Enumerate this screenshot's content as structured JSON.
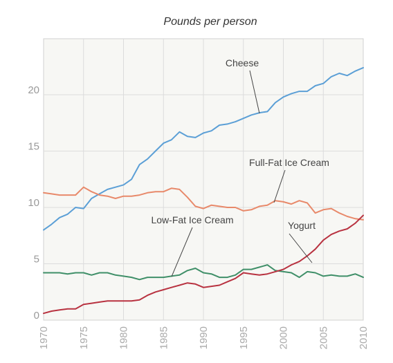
{
  "chart_data": {
    "type": "line",
    "title": "Pounds per person",
    "xlabel": "",
    "ylabel": "",
    "xlim": [
      1970,
      2010
    ],
    "ylim": [
      0,
      25
    ],
    "xticks": [
      "1970",
      "1975",
      "1980",
      "1985",
      "1990",
      "1995",
      "2000",
      "2005",
      "2010"
    ],
    "yticks": [
      "0",
      "5",
      "10",
      "15",
      "20"
    ],
    "grid": true,
    "x": [
      1970,
      1971,
      1972,
      1973,
      1974,
      1975,
      1976,
      1977,
      1978,
      1979,
      1980,
      1981,
      1982,
      1983,
      1984,
      1985,
      1986,
      1987,
      1988,
      1989,
      1990,
      1991,
      1992,
      1993,
      1994,
      1995,
      1996,
      1997,
      1998,
      1999,
      2000,
      2001,
      2002,
      2003,
      2004,
      2005,
      2006,
      2007,
      2008,
      2009,
      2010
    ],
    "series": [
      {
        "name": "Cheese",
        "color": "#5b9fd6",
        "values": [
          8.0,
          8.5,
          9.1,
          9.4,
          10.0,
          9.9,
          10.8,
          11.2,
          11.6,
          11.8,
          12.0,
          12.5,
          13.8,
          14.3,
          15.0,
          15.7,
          16.0,
          16.7,
          16.3,
          16.2,
          16.6,
          16.8,
          17.3,
          17.4,
          17.6,
          17.9,
          18.2,
          18.4,
          18.5,
          19.3,
          19.8,
          20.1,
          20.3,
          20.3,
          20.8,
          21.0,
          21.6,
          21.9,
          21.7,
          22.1,
          22.4
        ]
      },
      {
        "name": "Full-Fat Ice Cream",
        "color": "#e8896a",
        "values": [
          11.3,
          11.2,
          11.1,
          11.1,
          11.1,
          11.8,
          11.4,
          11.1,
          11.0,
          10.8,
          11.0,
          11.0,
          11.1,
          11.3,
          11.4,
          11.4,
          11.7,
          11.6,
          10.9,
          10.1,
          9.9,
          10.2,
          10.1,
          10.0,
          10.0,
          9.7,
          9.8,
          10.1,
          10.2,
          10.6,
          10.5,
          10.3,
          10.6,
          10.4,
          9.5,
          9.8,
          9.9,
          9.5,
          9.2,
          9.0,
          8.9
        ]
      },
      {
        "name": "Low-Fat Ice Cream",
        "color": "#3f8f68",
        "values": [
          4.2,
          4.2,
          4.2,
          4.1,
          4.2,
          4.2,
          4.0,
          4.2,
          4.2,
          4.0,
          3.9,
          3.8,
          3.6,
          3.8,
          3.8,
          3.8,
          3.9,
          4.0,
          4.4,
          4.6,
          4.2,
          4.1,
          3.8,
          3.8,
          4.0,
          4.5,
          4.5,
          4.7,
          4.9,
          4.4,
          4.3,
          4.2,
          3.8,
          4.3,
          4.2,
          3.9,
          4.0,
          3.9,
          3.9,
          4.1,
          3.8
        ]
      },
      {
        "name": "Yogurt",
        "color": "#b83240",
        "values": [
          0.6,
          0.8,
          0.9,
          1.0,
          1.0,
          1.4,
          1.5,
          1.6,
          1.7,
          1.7,
          1.7,
          1.7,
          1.8,
          2.2,
          2.5,
          2.7,
          2.9,
          3.1,
          3.3,
          3.2,
          2.9,
          3.0,
          3.1,
          3.4,
          3.7,
          4.2,
          4.1,
          4.0,
          4.1,
          4.3,
          4.5,
          4.9,
          5.2,
          5.7,
          6.3,
          7.1,
          7.6,
          7.9,
          8.1,
          8.6,
          9.3
        ]
      }
    ]
  }
}
